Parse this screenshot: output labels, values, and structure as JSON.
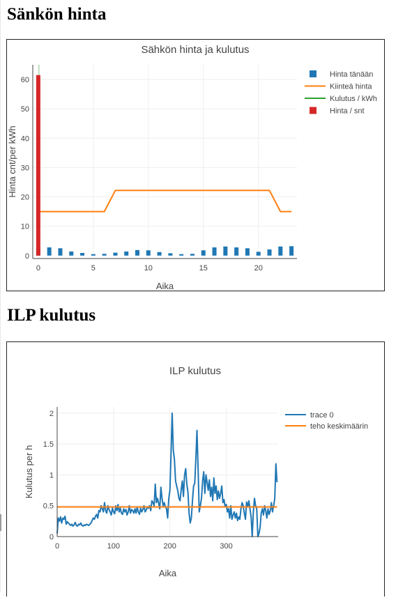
{
  "page": {
    "heading_price": "Sänkön hinta",
    "heading_ilp": "ILP kulutus"
  },
  "chart_data": [
    {
      "type": "bar",
      "title": "Sähkön hinta ja kulutus",
      "xlabel": "Aika",
      "ylabel": "Hinta cnt/per kWh",
      "xlim": [
        -0.5,
        23.5
      ],
      "ylim": [
        -1,
        65
      ],
      "xticks": [
        0,
        5,
        10,
        15,
        20
      ],
      "yticks": [
        0,
        10,
        20,
        30,
        40,
        50,
        60
      ],
      "legend_position": "top-right",
      "grid": true,
      "series": [
        {
          "name": "Hinta tänään",
          "type": "bar",
          "color": "#1f77b4",
          "x": [
            0,
            1,
            2,
            3,
            4,
            5,
            6,
            7,
            8,
            9,
            10,
            11,
            12,
            13,
            14,
            15,
            16,
            17,
            18,
            19,
            20,
            21,
            22,
            23
          ],
          "values": [
            2.7,
            2.8,
            2.5,
            1.4,
            0.9,
            0.5,
            0.6,
            1.0,
            1.4,
            1.9,
            1.8,
            1.2,
            0.8,
            0.5,
            0.6,
            1.8,
            2.8,
            3.1,
            2.8,
            2.5,
            1.3,
            2.1,
            3.1,
            3.2
          ]
        },
        {
          "name": "Kiinteä hinta",
          "type": "line",
          "color": "#ff7f0e",
          "x": [
            0,
            1,
            2,
            3,
            4,
            5,
            6,
            7,
            8,
            9,
            10,
            11,
            12,
            13,
            14,
            15,
            16,
            17,
            18,
            19,
            20,
            21,
            22,
            23
          ],
          "values": [
            15,
            15,
            15,
            15,
            15,
            15,
            15,
            22.2,
            22.2,
            22.2,
            22.2,
            22.2,
            22.2,
            22.2,
            22.2,
            22.2,
            22.2,
            22.2,
            22.2,
            22.2,
            22.2,
            22.2,
            15,
            15
          ]
        },
        {
          "name": "Kulutus / kWh",
          "type": "line",
          "color": "#2ca02c",
          "x": [
            0
          ],
          "values": [
            65
          ]
        },
        {
          "name": "Hinta / snt",
          "type": "bar",
          "color": "#d62728",
          "x": [
            0
          ],
          "values": [
            61.5
          ]
        }
      ]
    },
    {
      "type": "line",
      "title": "ILP kulutus",
      "xlabel": "Aika",
      "ylabel": "Kulutus per h",
      "xlim": [
        0,
        392
      ],
      "ylim": [
        0,
        2.1
      ],
      "xticks": [
        0,
        100,
        200,
        300
      ],
      "yticks": [
        0,
        0.5,
        1,
        1.5,
        2
      ],
      "legend_position": "top-right",
      "grid": true,
      "series": [
        {
          "name": "trace 0",
          "color": "#1f77b4",
          "x": [
            0,
            2,
            4,
            6,
            8,
            10,
            12,
            14,
            16,
            18,
            20,
            22,
            24,
            26,
            28,
            30,
            32,
            34,
            36,
            38,
            40,
            42,
            44,
            46,
            48,
            50,
            52,
            54,
            56,
            58,
            60,
            62,
            64,
            66,
            68,
            70,
            72,
            74,
            76,
            78,
            80,
            82,
            84,
            86,
            88,
            90,
            92,
            94,
            96,
            98,
            100,
            102,
            104,
            106,
            108,
            110,
            112,
            114,
            116,
            118,
            120,
            122,
            124,
            126,
            128,
            130,
            132,
            134,
            136,
            138,
            140,
            142,
            144,
            146,
            148,
            150,
            152,
            154,
            156,
            158,
            160,
            162,
            164,
            166,
            168,
            170,
            172,
            174,
            176,
            178,
            180,
            182,
            184,
            186,
            188,
            190,
            192,
            194,
            196,
            198,
            200,
            202,
            204,
            206,
            208,
            210,
            212,
            214,
            216,
            218,
            220,
            222,
            224,
            226,
            228,
            230,
            232,
            234,
            236,
            238,
            240,
            242,
            244,
            246,
            248,
            250,
            252,
            254,
            256,
            258,
            260,
            262,
            264,
            266,
            268,
            270,
            272,
            274,
            276,
            278,
            280,
            282,
            284,
            286,
            288,
            290,
            292,
            294,
            296,
            298,
            300,
            302,
            304,
            306,
            308,
            310,
            312,
            314,
            316,
            318,
            320,
            322,
            324,
            326,
            328,
            330,
            332,
            334,
            336,
            338,
            340,
            342,
            344,
            346,
            348,
            350,
            352,
            354,
            356,
            358,
            360,
            362,
            364,
            366,
            368,
            370,
            372,
            374,
            376,
            378,
            380,
            382,
            384,
            386,
            388,
            390
          ],
          "values": [
            0.05,
            0.3,
            0.25,
            0.32,
            0.22,
            0.3,
            0.28,
            0.33,
            0.2,
            0.24,
            0.22,
            0.2,
            0.18,
            0.2,
            0.17,
            0.19,
            0.23,
            0.18,
            0.17,
            0.2,
            0.19,
            0.22,
            0.18,
            0.17,
            0.19,
            0.18,
            0.2,
            0.19,
            0.18,
            0.2,
            0.22,
            0.26,
            0.3,
            0.28,
            0.33,
            0.36,
            0.3,
            0.42,
            0.4,
            0.5,
            0.45,
            0.4,
            0.55,
            0.42,
            0.38,
            0.5,
            0.44,
            0.4,
            0.35,
            0.46,
            0.4,
            0.37,
            0.5,
            0.42,
            0.52,
            0.4,
            0.46,
            0.38,
            0.36,
            0.45,
            0.4,
            0.44,
            0.35,
            0.4,
            0.5,
            0.38,
            0.44,
            0.42,
            0.38,
            0.45,
            0.38,
            0.48,
            0.4,
            0.36,
            0.46,
            0.4,
            0.44,
            0.5,
            0.4,
            0.43,
            0.48,
            0.46,
            0.5,
            0.42,
            0.58,
            0.55,
            0.5,
            0.85,
            0.55,
            0.62,
            0.54,
            0.45,
            0.8,
            0.62,
            0.5,
            0.55,
            0.48,
            0.45,
            0.3,
            0.62,
            0.75,
            1.35,
            2.0,
            1.4,
            1.25,
            0.9,
            0.82,
            0.74,
            0.62,
            0.58,
            0.76,
            0.9,
            0.65,
            1.0,
            1.1,
            0.85,
            0.72,
            0.38,
            0.22,
            0.3,
            0.58,
            0.82,
            0.86,
            1.25,
            1.72,
            1.1,
            0.4,
            0.5,
            0.62,
            0.9,
            1.05,
            0.7,
            1.0,
            0.88,
            0.75,
            0.92,
            0.65,
            0.8,
            0.58,
            0.95,
            0.7,
            0.82,
            0.6,
            0.74,
            0.62,
            0.7,
            0.82,
            0.55,
            0.6,
            0.48,
            0.52,
            0.4,
            0.45,
            0.3,
            0.5,
            0.28,
            0.35,
            0.4,
            0.3,
            0.38,
            0.26,
            0.32,
            0.28,
            0.45,
            0.55,
            0.5,
            0.38,
            0.28,
            0.56,
            0.48,
            0.58,
            0.45,
            0.32,
            0.0,
            0.4,
            0.62,
            0.5,
            0.45,
            0.0,
            0.05,
            0.15,
            0.38,
            0.45,
            0.35,
            0.5,
            0.42,
            0.3,
            0.45,
            0.36,
            0.42,
            0.55,
            0.4,
            0.5,
            0.62,
            1.18,
            0.88
          ]
        },
        {
          "name": "teho keskimäärin",
          "color": "#ff7f0e",
          "x": [
            0,
            390
          ],
          "values": [
            0.48,
            0.48
          ]
        }
      ]
    }
  ]
}
